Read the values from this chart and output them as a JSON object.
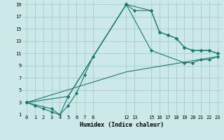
{
  "xlabel": "Humidex (Indice chaleur)",
  "bg_color": "#cce8e8",
  "grid_color": "#aad0d0",
  "line_color": "#1a7a6e",
  "xlim": [
    -0.5,
    23.5
  ],
  "ylim": [
    1,
    19.5
  ],
  "xtick_positions": [
    0,
    1,
    2,
    3,
    4,
    5,
    6,
    7,
    8,
    12,
    13,
    15,
    16,
    17,
    18,
    19,
    20,
    21,
    22,
    23
  ],
  "xtick_labels": [
    "0",
    "1",
    "2",
    "3",
    "4",
    "5",
    "6",
    "7",
    "8",
    "12",
    "13",
    "15",
    "16",
    "17",
    "18",
    "19",
    "20",
    "21",
    "22",
    "23"
  ],
  "ytick_positions": [
    1,
    3,
    5,
    7,
    9,
    11,
    13,
    15,
    17,
    19
  ],
  "ytick_labels": [
    "1",
    "3",
    "5",
    "7",
    "9",
    "11",
    "13",
    "15",
    "17",
    "19"
  ],
  "series": [
    {
      "x": [
        0,
        1,
        2,
        3,
        4,
        5,
        6,
        7,
        8,
        12,
        13,
        15,
        16,
        17,
        18,
        19,
        20,
        21,
        22,
        23
      ],
      "y": [
        3,
        2.5,
        2,
        1.5,
        1,
        2.5,
        4.5,
        7.5,
        10.5,
        19,
        18,
        18,
        14.5,
        14,
        13.5,
        12,
        11.5,
        11.5,
        11.5,
        11
      ],
      "linestyle": "-",
      "marker": true
    },
    {
      "x": [
        0,
        3,
        4,
        5,
        12,
        15,
        16,
        17,
        18,
        19,
        20,
        21,
        22,
        23
      ],
      "y": [
        3,
        2,
        1,
        4,
        19,
        18,
        14.5,
        14,
        13.5,
        12,
        11.5,
        11.5,
        11.5,
        11
      ],
      "linestyle": "-",
      "marker": true
    },
    {
      "x": [
        0,
        5,
        12,
        15,
        19,
        20,
        21,
        22,
        23
      ],
      "y": [
        3,
        4,
        19,
        11.5,
        9.5,
        9.5,
        10,
        10,
        10.5
      ],
      "linestyle": "-",
      "marker": true
    },
    {
      "x": [
        0,
        12,
        23
      ],
      "y": [
        3,
        8,
        10.5
      ],
      "linestyle": "-",
      "marker": false
    }
  ]
}
